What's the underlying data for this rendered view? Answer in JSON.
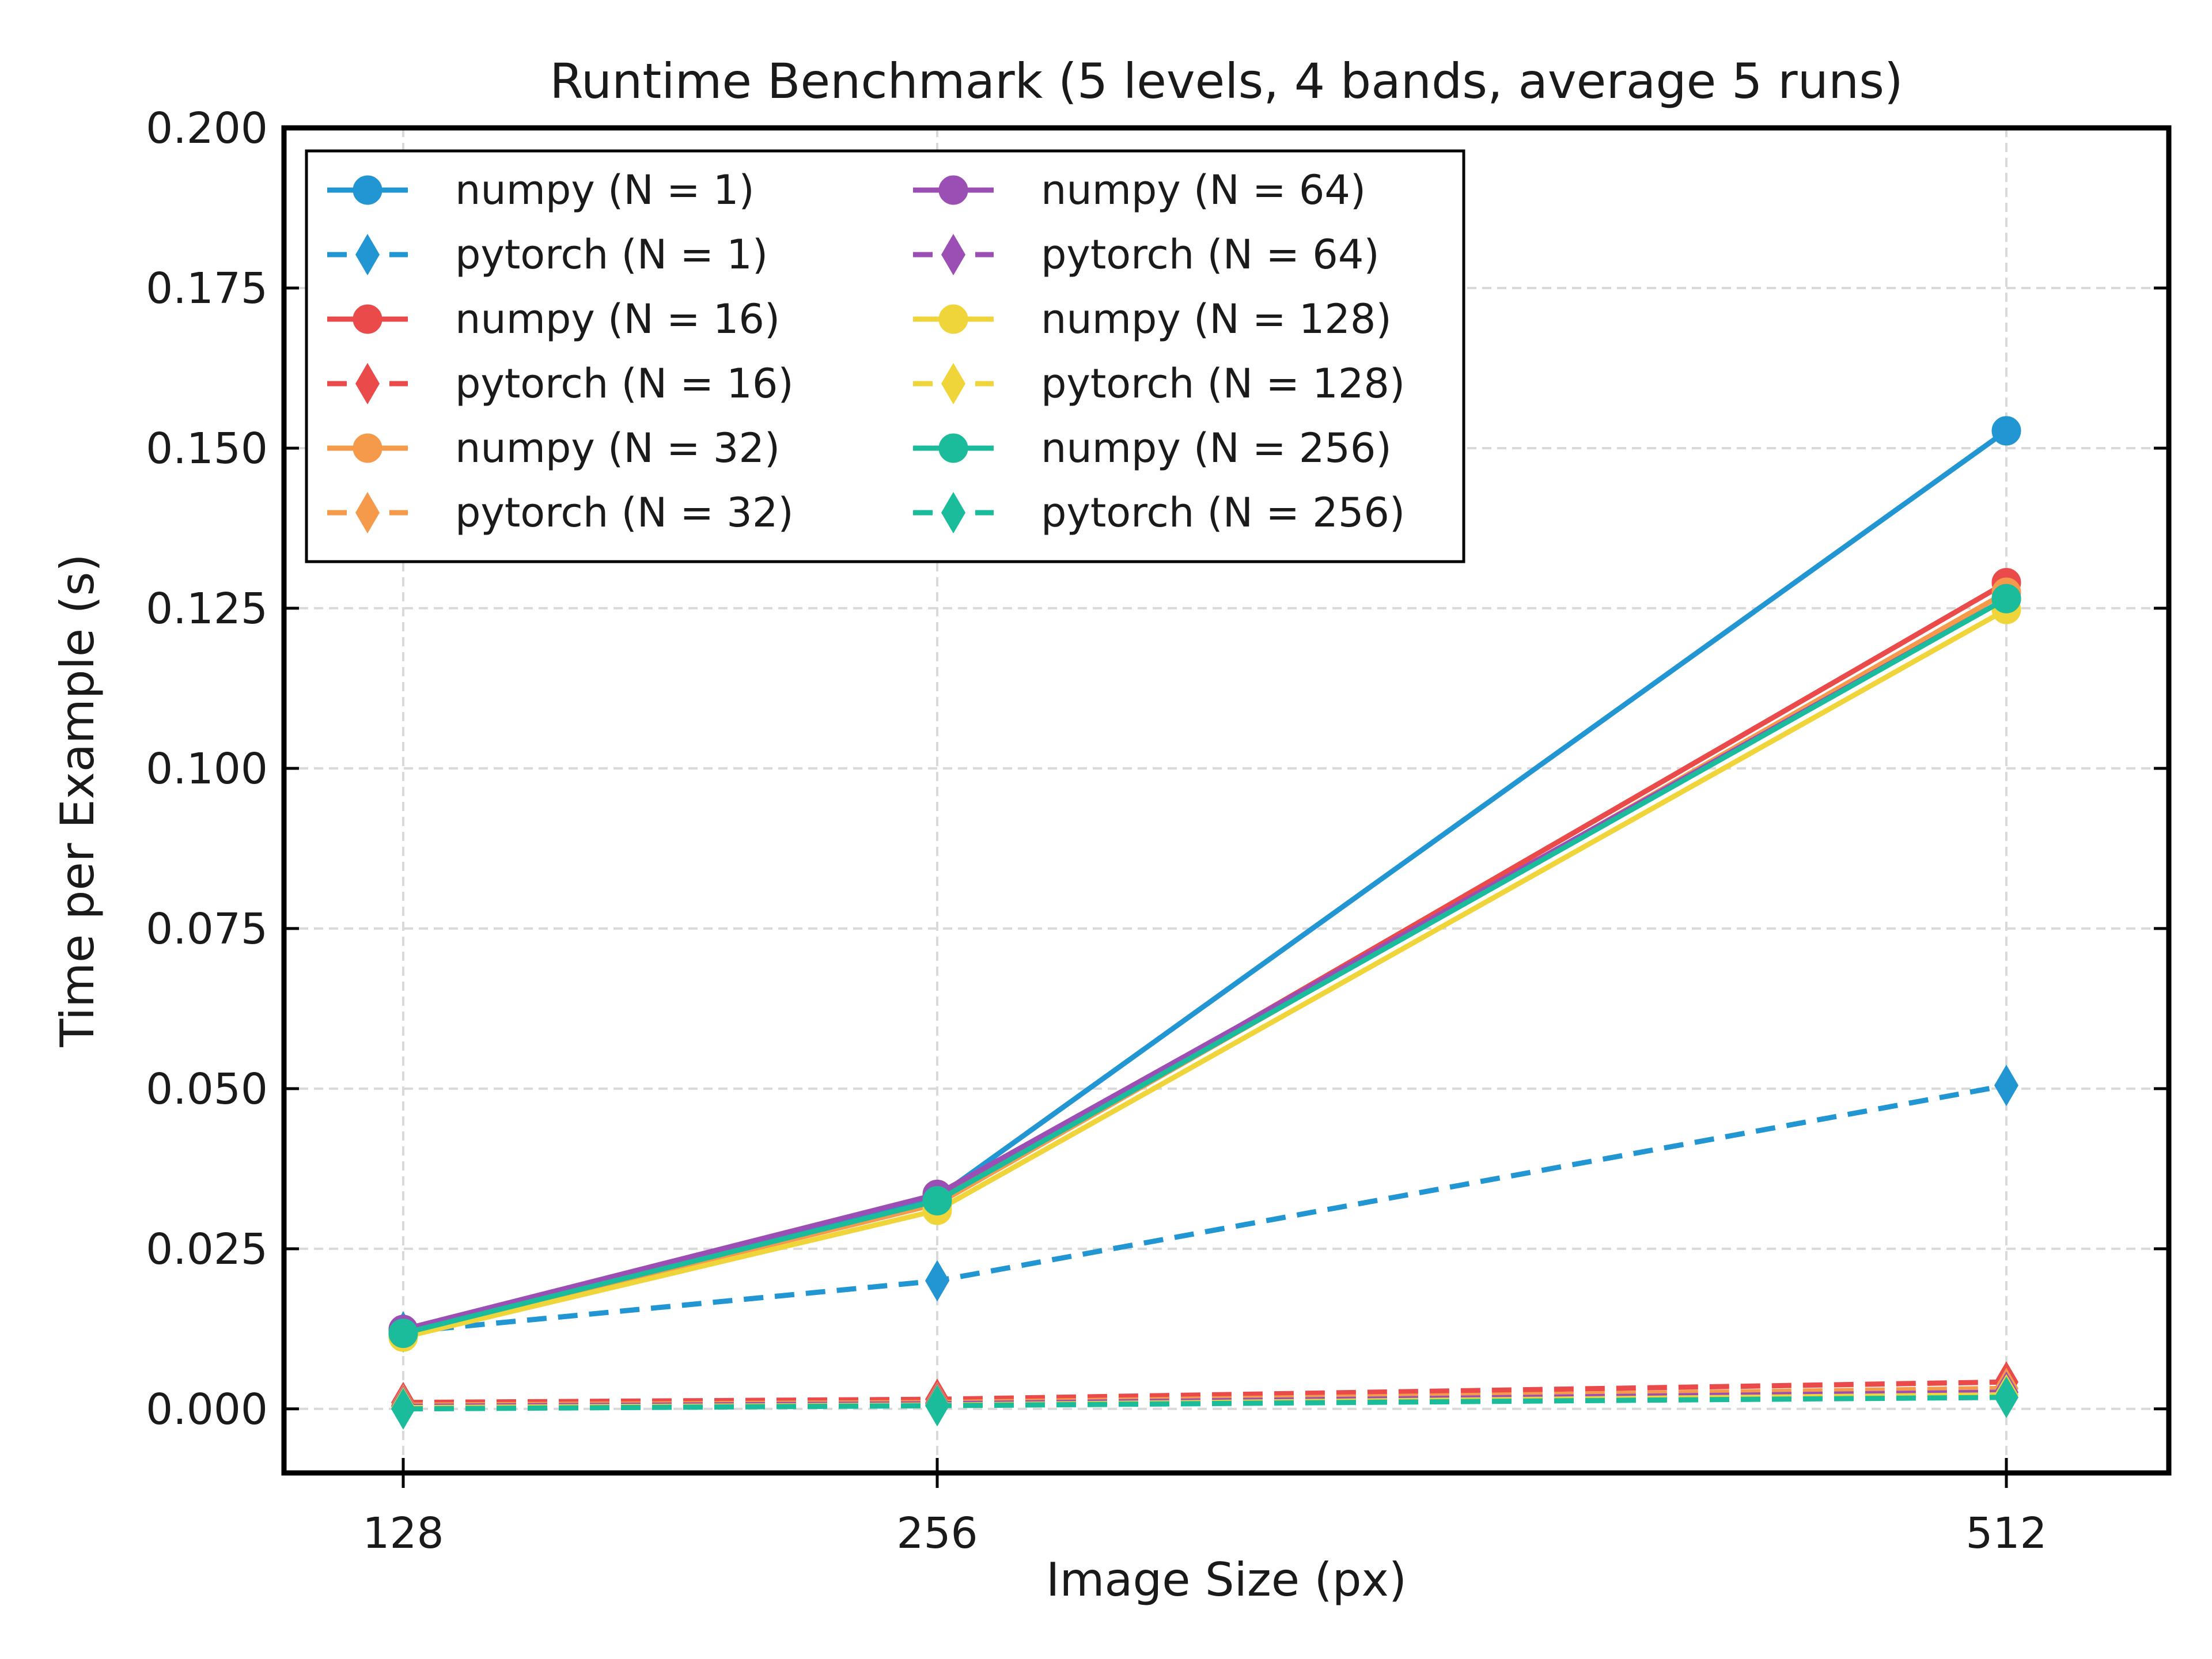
{
  "chart_data": {
    "type": "line",
    "title": "Runtime Benchmark (5 levels, 4 bands, average 5 runs)",
    "xlabel": "Image Size (px)",
    "ylabel": "Time per Example (s)",
    "x": [
      128,
      256,
      512
    ],
    "x_tick_labels": [
      "128",
      "256",
      "512"
    ],
    "ylim": [
      -0.01,
      0.2
    ],
    "y_ticks": [
      0.0,
      0.025,
      0.05,
      0.075,
      0.1,
      0.125,
      0.15,
      0.175,
      0.2
    ],
    "y_tick_labels": [
      "0.000",
      "0.025",
      "0.050",
      "0.075",
      "0.100",
      "0.125",
      "0.150",
      "0.175",
      "0.200"
    ],
    "grid": true,
    "legend_position": "top-left",
    "legend_columns": 2,
    "series": [
      {
        "name": "numpy  (N = 1)",
        "values": [
          0.012,
          0.033,
          0.1527
        ],
        "color": "#2196d3",
        "marker": "circle",
        "dashed": false
      },
      {
        "name": "pytorch (N = 1)",
        "values": [
          0.012,
          0.02,
          0.0505
        ],
        "color": "#2196d3",
        "marker": "diamond",
        "dashed": true
      },
      {
        "name": "numpy  (N = 16)",
        "values": [
          0.0118,
          0.0325,
          0.129
        ],
        "color": "#ea4a4a",
        "marker": "circle",
        "dashed": false
      },
      {
        "name": "pytorch (N = 16)",
        "values": [
          0.001,
          0.0015,
          0.0042
        ],
        "color": "#ea4a4a",
        "marker": "diamond",
        "dashed": true
      },
      {
        "name": "numpy  (N = 32)",
        "values": [
          0.0116,
          0.032,
          0.1275
        ],
        "color": "#f59a4a",
        "marker": "circle",
        "dashed": false
      },
      {
        "name": "pytorch (N = 32)",
        "values": [
          0.0006,
          0.001,
          0.0032
        ],
        "color": "#f59a4a",
        "marker": "diamond",
        "dashed": true
      },
      {
        "name": "numpy  (N = 64)",
        "values": [
          0.0124,
          0.0335,
          0.1265
        ],
        "color": "#9b4fb5",
        "marker": "circle",
        "dashed": false
      },
      {
        "name": "pytorch (N = 64)",
        "values": [
          0.0004,
          0.0008,
          0.0026
        ],
        "color": "#9b4fb5",
        "marker": "diamond",
        "dashed": true
      },
      {
        "name": "numpy  (N = 128)",
        "values": [
          0.0112,
          0.031,
          0.1248
        ],
        "color": "#f0d53a",
        "marker": "circle",
        "dashed": false
      },
      {
        "name": "pytorch (N = 128)",
        "values": [
          0.0002,
          0.0006,
          0.0022
        ],
        "color": "#f0d53a",
        "marker": "diamond",
        "dashed": true
      },
      {
        "name": "numpy  (N = 256)",
        "values": [
          0.0118,
          0.0325,
          0.1265
        ],
        "color": "#1abc9c",
        "marker": "circle",
        "dashed": false
      },
      {
        "name": "pytorch (N = 256)",
        "values": [
          0.0,
          0.0005,
          0.0018
        ],
        "color": "#1abc9c",
        "marker": "diamond",
        "dashed": true
      }
    ]
  }
}
